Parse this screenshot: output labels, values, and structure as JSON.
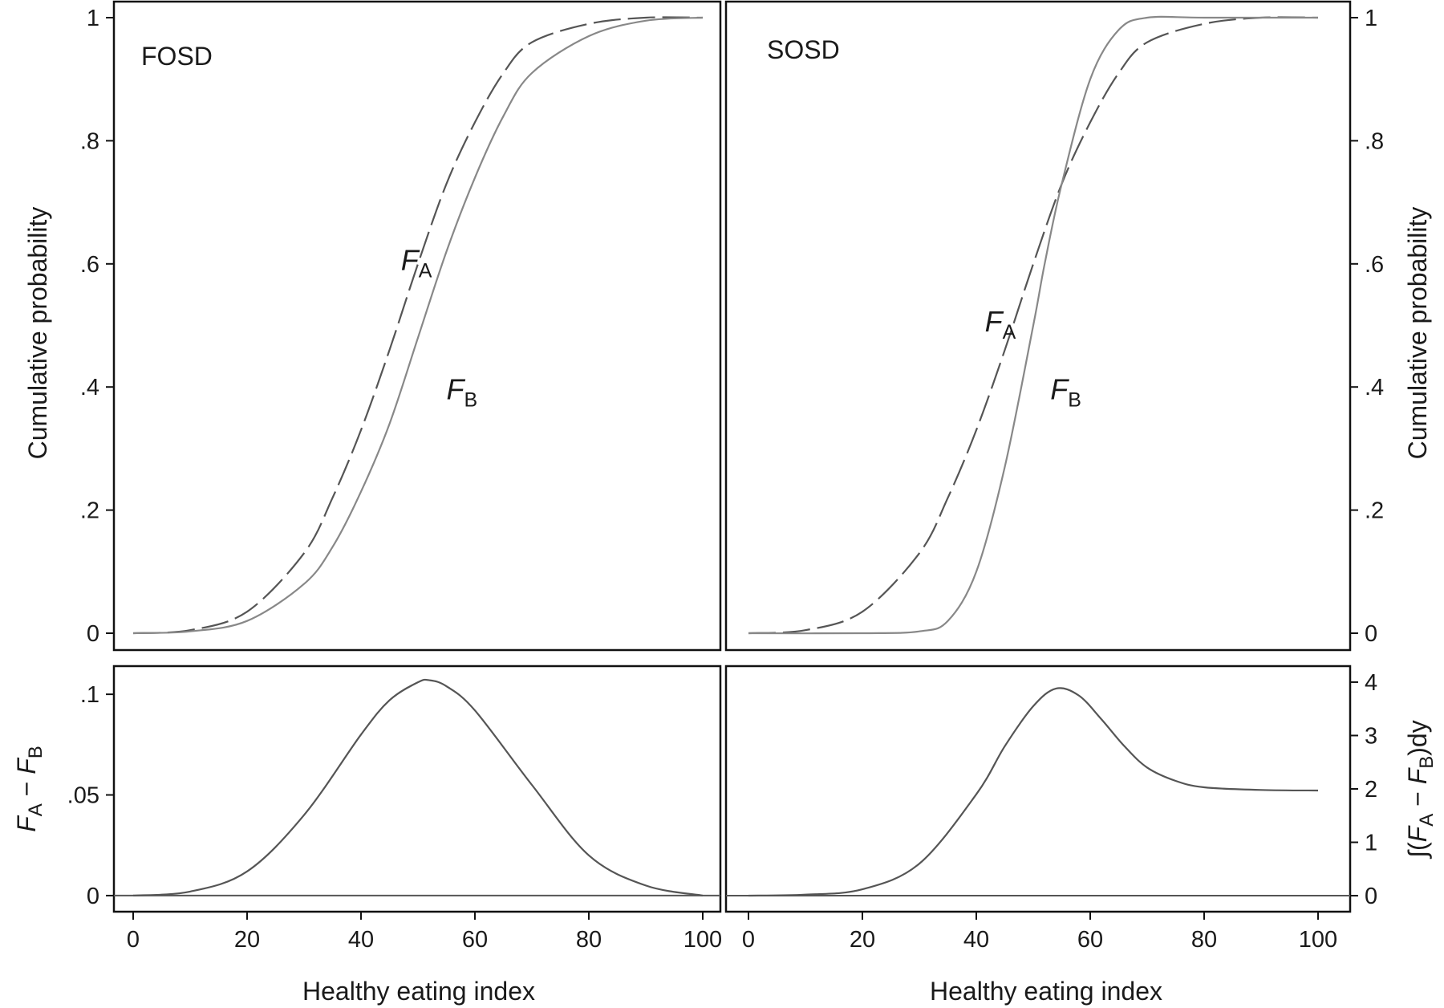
{
  "chart_data": [
    {
      "type": "line",
      "panel": "top-left",
      "corner_label": "FOSD",
      "xlim": [
        0,
        100
      ],
      "ylim": [
        0,
        1
      ],
      "yticks": [
        "0",
        ".2",
        ".4",
        ".6",
        ".8",
        "1"
      ],
      "ylabel": "Cumulative probability",
      "series": [
        {
          "name": "F_A",
          "style": "dashed",
          "color": "#555555",
          "x": [
            0,
            10,
            20,
            30,
            35,
            40,
            45,
            50,
            55,
            60,
            65,
            70,
            80,
            90,
            100
          ],
          "y": [
            0,
            0.005,
            0.035,
            0.13,
            0.22,
            0.33,
            0.46,
            0.6,
            0.73,
            0.83,
            0.91,
            0.96,
            0.99,
            1,
            1
          ]
        },
        {
          "name": "F_B",
          "style": "solid",
          "color": "#888888",
          "x": [
            0,
            10,
            20,
            30,
            35,
            40,
            45,
            50,
            55,
            60,
            65,
            70,
            80,
            90,
            100
          ],
          "y": [
            0,
            0.003,
            0.02,
            0.08,
            0.14,
            0.23,
            0.34,
            0.48,
            0.62,
            0.74,
            0.84,
            0.91,
            0.97,
            0.995,
            1
          ]
        }
      ],
      "annotations": [
        {
          "main": "F",
          "sub": "A",
          "x": 47,
          "y": 0.59
        },
        {
          "main": "F",
          "sub": "B",
          "x": 55,
          "y": 0.38
        }
      ]
    },
    {
      "type": "line",
      "panel": "top-right",
      "corner_label": "SOSD",
      "xlim": [
        0,
        100
      ],
      "ylim": [
        0,
        1
      ],
      "yticks": [
        "0",
        ".2",
        ".4",
        ".6",
        ".8",
        "1"
      ],
      "ylabel": "Cumulative probability",
      "series": [
        {
          "name": "F_A",
          "style": "dashed",
          "color": "#555555",
          "x": [
            0,
            10,
            20,
            30,
            35,
            40,
            45,
            50,
            55,
            60,
            65,
            70,
            80,
            90,
            100
          ],
          "y": [
            0,
            0.005,
            0.035,
            0.13,
            0.22,
            0.33,
            0.46,
            0.6,
            0.73,
            0.83,
            0.91,
            0.96,
            0.99,
            1,
            1
          ]
        },
        {
          "name": "F_B",
          "style": "solid",
          "color": "#888888",
          "x": [
            0,
            20,
            30,
            35,
            40,
            45,
            50,
            52,
            55,
            60,
            65,
            70,
            80,
            100
          ],
          "y": [
            0,
            0,
            0.003,
            0.02,
            0.1,
            0.27,
            0.5,
            0.6,
            0.73,
            0.9,
            0.98,
            1,
            1,
            1
          ]
        }
      ],
      "annotations": [
        {
          "main": "F",
          "sub": "A",
          "x": 41.5,
          "y": 0.49
        },
        {
          "main": "F",
          "sub": "B",
          "x": 53,
          "y": 0.38
        }
      ]
    },
    {
      "type": "line",
      "panel": "bottom-left",
      "xlim": [
        0,
        100
      ],
      "ylim": [
        -0.008,
        0.114
      ],
      "yticks": [
        "0",
        ".05",
        ".1"
      ],
      "ylabel_main": [
        "F",
        "A",
        " − ",
        "F",
        "B"
      ],
      "xlabel": "Healthy eating index",
      "xticks": [
        "0",
        "20",
        "40",
        "60",
        "80",
        "100"
      ],
      "series": [
        {
          "name": "F_A − F_B",
          "style": "solid",
          "color": "#555555",
          "x": [
            0,
            10,
            20,
            30,
            40,
            45,
            50,
            52,
            55,
            60,
            70,
            80,
            90,
            100
          ],
          "y": [
            0,
            0.002,
            0.012,
            0.04,
            0.08,
            0.097,
            0.106,
            0.107,
            0.104,
            0.092,
            0.055,
            0.02,
            0.005,
            0
          ]
        }
      ]
    },
    {
      "type": "line",
      "panel": "bottom-right",
      "xlim": [
        0,
        100
      ],
      "ylim": [
        -0.3,
        4.3
      ],
      "yticks": [
        "0",
        "1",
        "2",
        "3",
        "4"
      ],
      "ylabel_main": [
        "∫(",
        "F",
        "A",
        " − ",
        "F",
        "B",
        ")dy"
      ],
      "xlabel": "Healthy eating index",
      "xticks": [
        "0",
        "20",
        "40",
        "60",
        "80",
        "100"
      ],
      "series": [
        {
          "name": "integral",
          "style": "solid",
          "color": "#555555",
          "x": [
            0,
            10,
            20,
            30,
            40,
            45,
            50,
            54,
            58,
            62,
            66,
            70,
            75,
            80,
            90,
            100
          ],
          "y": [
            0,
            0.02,
            0.12,
            0.6,
            1.9,
            2.8,
            3.55,
            3.88,
            3.75,
            3.3,
            2.8,
            2.4,
            2.15,
            2.03,
            1.98,
            1.97
          ]
        }
      ]
    }
  ]
}
